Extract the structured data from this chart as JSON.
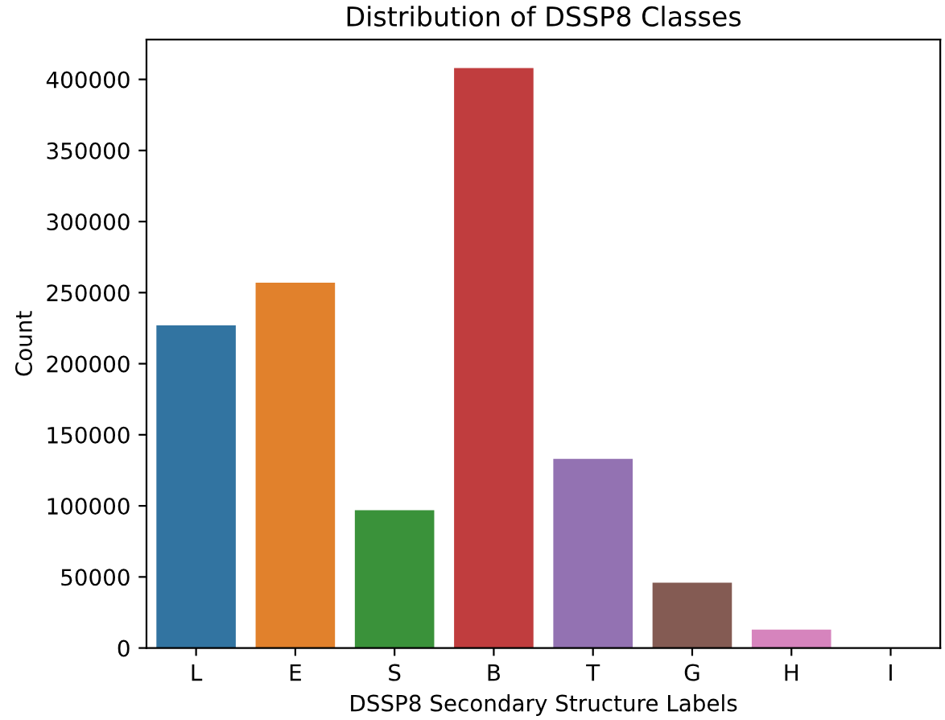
{
  "chart_data": {
    "type": "bar",
    "title": "Distribution of DSSP8 Classes",
    "xlabel": "DSSP8 Secondary Structure Labels",
    "ylabel": "Count",
    "categories": [
      "L",
      "E",
      "S",
      "B",
      "T",
      "G",
      "H",
      "I"
    ],
    "values": [
      227000,
      257000,
      97000,
      408000,
      133000,
      46000,
      13000,
      null
    ],
    "colors": [
      "#3274a1",
      "#e1812c",
      "#3a923a",
      "#c03d3e",
      "#9372b2",
      "#845b53",
      "#d684bd",
      "#7f7f7f"
    ],
    "ylim": [
      0,
      428000
    ],
    "yticks": [
      0,
      50000,
      100000,
      150000,
      200000,
      250000,
      300000,
      350000,
      400000
    ],
    "grid": false
  }
}
